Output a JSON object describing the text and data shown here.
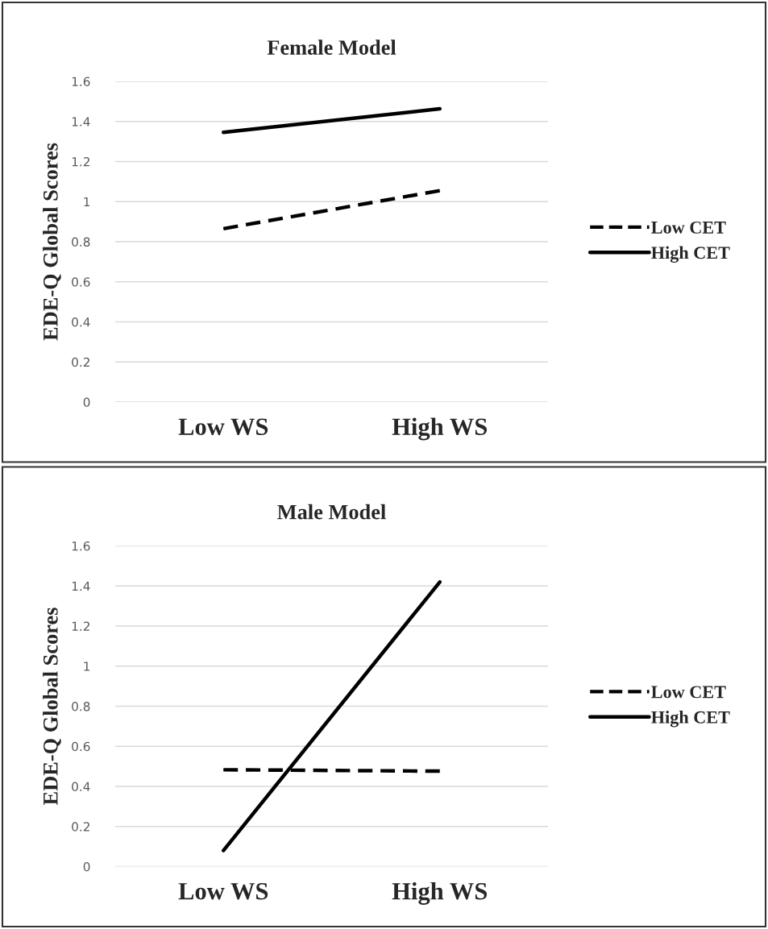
{
  "chart_data": [
    {
      "type": "line",
      "title": "Female Model",
      "ylabel": "EDE-Q Global Scores",
      "categories": [
        "Low WS",
        "High WS"
      ],
      "series": [
        {
          "name": "Low CET",
          "color": "#000000",
          "line_style": "dashed",
          "values": [
            0.865,
            1.055
          ]
        },
        {
          "name": "High CET",
          "color": "#000000",
          "line_style": "solid",
          "values": [
            1.346,
            1.463
          ]
        }
      ],
      "ylim": [
        0,
        1.6
      ],
      "yticks": [
        0,
        0.2,
        0.4,
        0.6,
        0.8,
        {
          "value": 1,
          "label": "1"
        },
        1.2,
        1.4,
        1.6
      ],
      "grid": "y",
      "legend": "right"
    },
    {
      "type": "line",
      "title": "Male Model",
      "ylabel": "EDE-Q Global Scores",
      "categories": [
        "Low WS",
        "High WS"
      ],
      "series": [
        {
          "name": "Low CET",
          "color": "#000000",
          "line_style": "dashed",
          "values": [
            0.483,
            0.476
          ]
        },
        {
          "name": "High CET",
          "color": "#000000",
          "line_style": "solid",
          "values": [
            0.08,
            1.42
          ]
        }
      ],
      "ylim": [
        0,
        1.6
      ],
      "yticks": [
        0,
        0.2,
        0.4,
        0.6,
        0.8,
        {
          "value": 1,
          "label": "1"
        },
        1.2,
        1.4,
        1.6
      ],
      "grid": "y",
      "legend": "right"
    }
  ]
}
